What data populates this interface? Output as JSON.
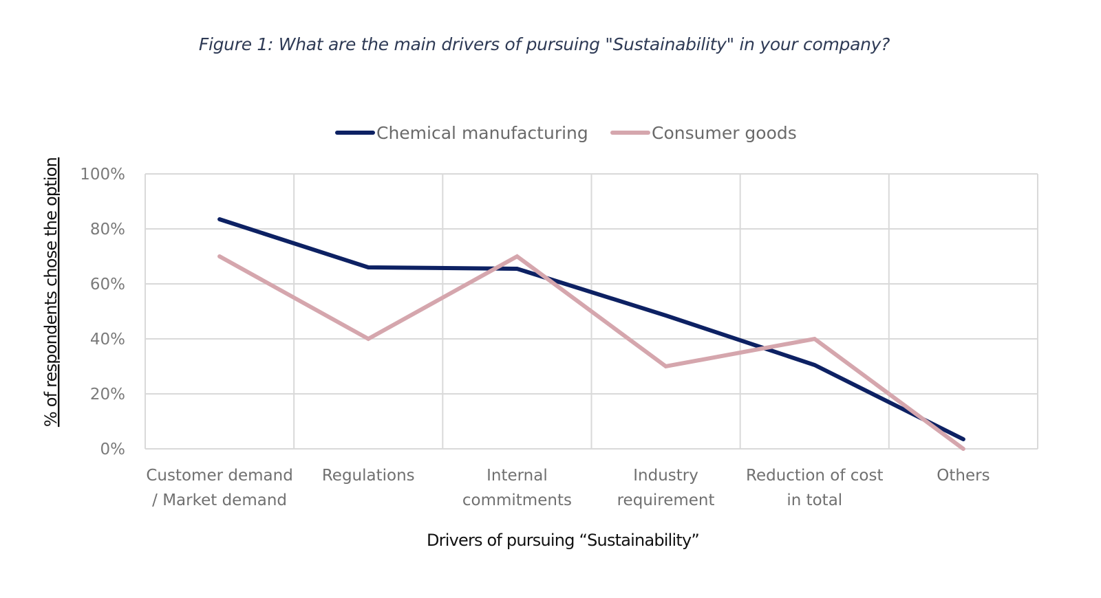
{
  "figure_title": "Figure 1: What are the main drivers of pursuing \"Sustainability\" in your company?",
  "colors": {
    "chemical": "#0d2163",
    "consumer": "#d5a6ad",
    "grid": "#d9d9d9",
    "title": "#2e3a55"
  },
  "chart_data": {
    "type": "line",
    "title": "Figure 1: What are the main drivers of pursuing \"Sustainability\" in your company?",
    "xlabel": "Drivers of pursuing “Sustainability”",
    "ylabel": "% of respondents chose the option",
    "categories": [
      [
        "Customer demand",
        "/ Market demand"
      ],
      [
        "Regulations"
      ],
      [
        "Internal",
        "commitments"
      ],
      [
        "Industry",
        "requirement"
      ],
      [
        "Reduction of cost",
        "in total"
      ],
      [
        "Others"
      ]
    ],
    "series": [
      {
        "name": "Chemical manufacturing",
        "values": [
          83.5,
          66,
          65.5,
          48.5,
          30.5,
          3.5
        ]
      },
      {
        "name": "Consumer goods",
        "values": [
          70,
          40,
          70,
          30,
          40,
          0
        ]
      }
    ],
    "ylim": [
      0,
      100
    ],
    "yticks": [
      0,
      20,
      40,
      60,
      80,
      100
    ],
    "ytick_labels": [
      "0%",
      "20%",
      "40%",
      "60%",
      "80%",
      "100%"
    ],
    "grid": true,
    "legend_position": "top-center"
  }
}
